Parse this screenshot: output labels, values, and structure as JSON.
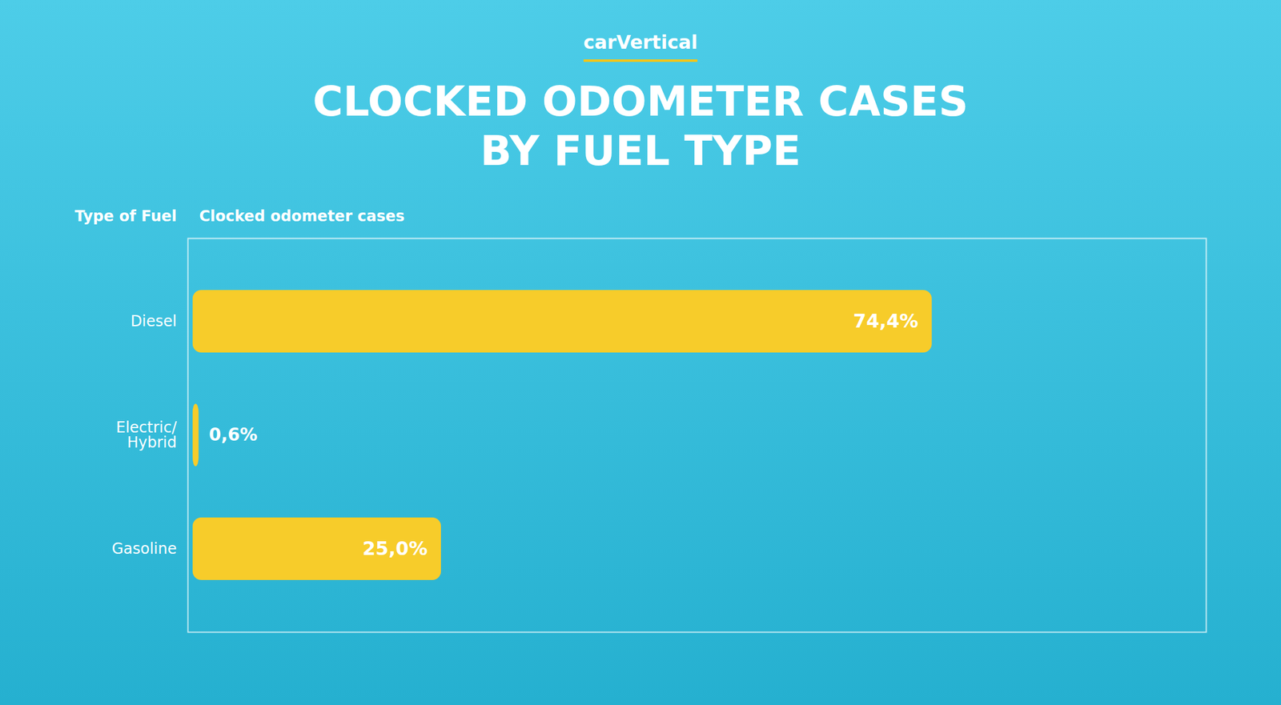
{
  "chart_data": {
    "type": "bar",
    "orientation": "horizontal",
    "title": "CLOCKED ODOMETER CASES\nBY FUEL TYPE",
    "annotations": [
      "carVertical"
    ],
    "ylabel": "Type of Fuel",
    "xlabel": "Clocked odometer cases",
    "categories": [
      "Diesel",
      "Electric/\nHybrid",
      "Gasoline"
    ],
    "values": [
      74.4,
      0.6,
      25.0
    ],
    "value_labels": [
      "74,4%",
      "0,6%",
      "25,0%"
    ],
    "data_labels": true,
    "xlim": [
      -0.5,
      102
    ],
    "tick_labels": "y",
    "grid": false,
    "color": "#F7CC2A"
  }
}
